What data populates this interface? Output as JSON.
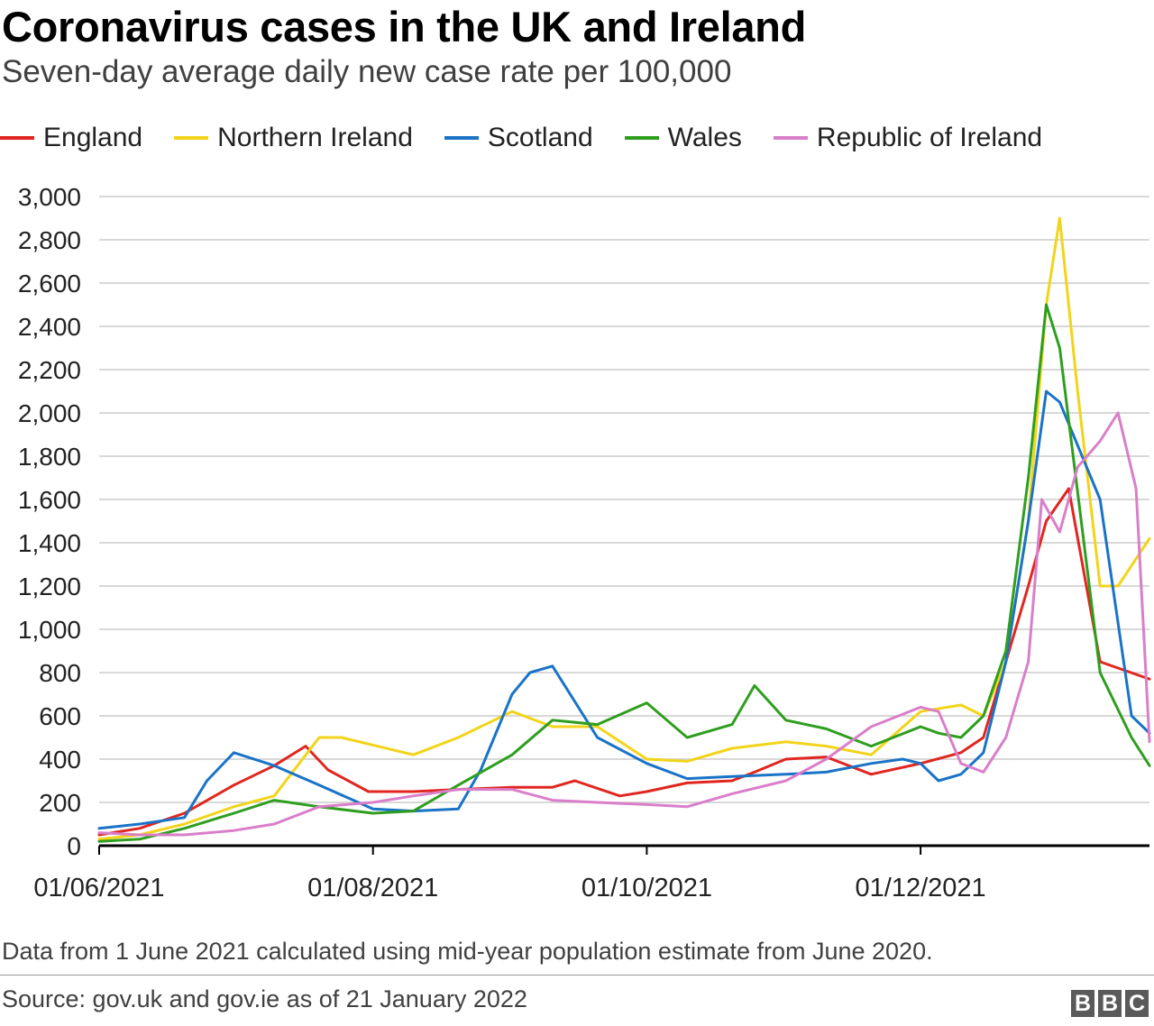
{
  "title": "Coronavirus cases in the UK and Ireland",
  "subtitle": "Seven-day average daily new case rate per 100,000",
  "legend": [
    {
      "name": "England",
      "color": "#e0261f"
    },
    {
      "name": "Northern Ireland",
      "color": "#f2d41a"
    },
    {
      "name": "Scotland",
      "color": "#1a73c7"
    },
    {
      "name": "Wales",
      "color": "#2f9e1f"
    },
    {
      "name": "Republic of Ireland",
      "color": "#d97fc9"
    }
  ],
  "footnote": "Data from 1 June 2021 calculated using mid-year population estimate from June 2020.",
  "source": "Source: gov.uk and gov.ie as of 21 January 2022",
  "logo": [
    "B",
    "B",
    "C"
  ],
  "chart_data": {
    "type": "line",
    "title": "Coronavirus cases in the UK and Ireland",
    "subtitle": "Seven-day average daily new case rate per 100,000",
    "xlabel": "",
    "ylabel": "",
    "x_range": [
      "2021-06-01",
      "2022-01-21"
    ],
    "x_ticks": [
      "2021-06-01",
      "2021-08-01",
      "2021-10-01",
      "2021-12-01"
    ],
    "x_tick_labels": [
      "01/06/2021",
      "01/08/2021",
      "01/10/2021",
      "01/12/2021"
    ],
    "ylim": [
      0,
      3000
    ],
    "y_ticks": [
      0,
      200,
      400,
      600,
      800,
      1000,
      1200,
      1400,
      1600,
      1800,
      2000,
      2200,
      2400,
      2600,
      2800,
      3000
    ],
    "y_tick_labels": [
      "0",
      "200",
      "400",
      "600",
      "800",
      "1,000",
      "1,200",
      "1,400",
      "1,600",
      "1,800",
      "2,000",
      "2,200",
      "2,400",
      "2,600",
      "2,800",
      "3,000"
    ],
    "grid": "horizontal",
    "legend_position": "top",
    "series": [
      {
        "name": "England",
        "color": "#e0261f",
        "x": [
          "2021-06-01",
          "2021-06-10",
          "2021-06-20",
          "2021-07-01",
          "2021-07-10",
          "2021-07-17",
          "2021-07-22",
          "2021-07-31",
          "2021-08-10",
          "2021-08-20",
          "2021-09-01",
          "2021-09-10",
          "2021-09-15",
          "2021-09-25",
          "2021-10-01",
          "2021-10-10",
          "2021-10-20",
          "2021-10-25",
          "2021-11-01",
          "2021-11-10",
          "2021-11-20",
          "2021-12-01",
          "2021-12-10",
          "2021-12-15",
          "2021-12-20",
          "2021-12-25",
          "2021-12-29",
          "2022-01-03",
          "2022-01-10",
          "2022-01-21"
        ],
        "y": [
          50,
          80,
          150,
          280,
          370,
          460,
          350,
          250,
          250,
          260,
          270,
          270,
          300,
          230,
          250,
          290,
          300,
          340,
          400,
          410,
          330,
          380,
          430,
          500,
          850,
          1200,
          1500,
          1650,
          850,
          770
        ]
      },
      {
        "name": "Northern Ireland",
        "color": "#f2d41a",
        "x": [
          "2021-06-01",
          "2021-06-10",
          "2021-06-20",
          "2021-07-01",
          "2021-07-10",
          "2021-07-20",
          "2021-07-25",
          "2021-08-10",
          "2021-08-20",
          "2021-09-01",
          "2021-09-10",
          "2021-09-20",
          "2021-10-01",
          "2021-10-10",
          "2021-10-20",
          "2021-11-01",
          "2021-11-10",
          "2021-11-20",
          "2021-12-01",
          "2021-12-10",
          "2021-12-15",
          "2021-12-20",
          "2021-12-25",
          "2021-12-29",
          "2022-01-01",
          "2022-01-05",
          "2022-01-10",
          "2022-01-14",
          "2022-01-21"
        ],
        "y": [
          30,
          50,
          100,
          180,
          230,
          500,
          500,
          420,
          500,
          620,
          550,
          550,
          400,
          390,
          450,
          480,
          460,
          420,
          620,
          650,
          600,
          850,
          1500,
          2500,
          2900,
          2100,
          1200,
          1200,
          1420
        ]
      },
      {
        "name": "Scotland",
        "color": "#1a73c7",
        "x": [
          "2021-06-01",
          "2021-06-10",
          "2021-06-20",
          "2021-06-25",
          "2021-07-01",
          "2021-07-10",
          "2021-07-20",
          "2021-08-01",
          "2021-08-10",
          "2021-08-20",
          "2021-08-25",
          "2021-09-01",
          "2021-09-05",
          "2021-09-10",
          "2021-09-20",
          "2021-10-01",
          "2021-10-10",
          "2021-10-20",
          "2021-11-01",
          "2021-11-10",
          "2021-11-20",
          "2021-11-27",
          "2021-12-01",
          "2021-12-05",
          "2021-12-10",
          "2021-12-15",
          "2021-12-20",
          "2021-12-25",
          "2021-12-29",
          "2022-01-01",
          "2022-01-10",
          "2022-01-17",
          "2022-01-21"
        ],
        "y": [
          80,
          100,
          130,
          300,
          430,
          370,
          280,
          170,
          160,
          170,
          350,
          700,
          800,
          830,
          500,
          380,
          310,
          320,
          330,
          340,
          380,
          400,
          380,
          300,
          330,
          430,
          850,
          1500,
          2100,
          2050,
          1600,
          600,
          520
        ]
      },
      {
        "name": "Wales",
        "color": "#2f9e1f",
        "x": [
          "2021-06-01",
          "2021-06-10",
          "2021-06-20",
          "2021-07-01",
          "2021-07-10",
          "2021-07-20",
          "2021-08-01",
          "2021-08-10",
          "2021-08-20",
          "2021-09-01",
          "2021-09-10",
          "2021-09-20",
          "2021-10-01",
          "2021-10-10",
          "2021-10-20",
          "2021-10-25",
          "2021-11-01",
          "2021-11-10",
          "2021-11-20",
          "2021-12-01",
          "2021-12-05",
          "2021-12-10",
          "2021-12-15",
          "2021-12-20",
          "2021-12-25",
          "2021-12-29",
          "2022-01-01",
          "2022-01-10",
          "2022-01-17",
          "2022-01-21"
        ],
        "y": [
          20,
          30,
          80,
          150,
          210,
          180,
          150,
          160,
          280,
          420,
          580,
          560,
          660,
          500,
          560,
          740,
          580,
          540,
          460,
          550,
          520,
          500,
          600,
          900,
          1700,
          2500,
          2300,
          800,
          500,
          370
        ]
      },
      {
        "name": "Republic of Ireland",
        "color": "#d97fc9",
        "x": [
          "2021-06-01",
          "2021-06-10",
          "2021-06-20",
          "2021-07-01",
          "2021-07-10",
          "2021-07-20",
          "2021-08-01",
          "2021-08-10",
          "2021-08-20",
          "2021-09-01",
          "2021-09-10",
          "2021-09-20",
          "2021-10-01",
          "2021-10-10",
          "2021-10-20",
          "2021-11-01",
          "2021-11-10",
          "2021-11-20",
          "2021-12-01",
          "2021-12-05",
          "2021-12-10",
          "2021-12-15",
          "2021-12-20",
          "2021-12-25",
          "2021-12-28",
          "2022-01-01",
          "2022-01-05",
          "2022-01-10",
          "2022-01-14",
          "2022-01-18",
          "2022-01-21"
        ],
        "y": [
          60,
          50,
          50,
          70,
          100,
          180,
          200,
          230,
          260,
          260,
          210,
          200,
          190,
          180,
          240,
          300,
          400,
          550,
          640,
          620,
          380,
          340,
          500,
          850,
          1600,
          1450,
          1750,
          1870,
          2000,
          1650,
          480
        ]
      }
    ]
  }
}
